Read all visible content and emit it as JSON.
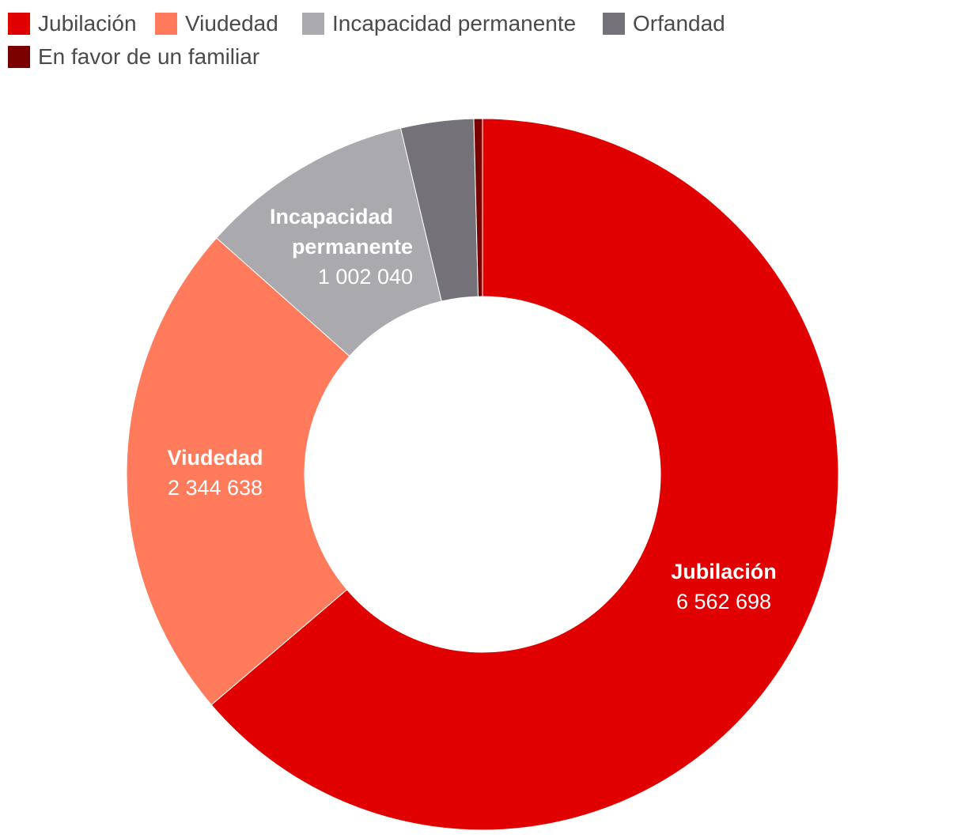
{
  "chart_data": {
    "type": "pie",
    "donut": true,
    "series": [
      {
        "name": "Jubilación",
        "value": 6562698,
        "value_label": "6 562 698",
        "color": "#e00000",
        "show_label": true
      },
      {
        "name": "Viudedad",
        "value": 2344638,
        "value_label": "2 344 638",
        "color": "#ff7b5c",
        "show_label": true
      },
      {
        "name": "Incapacidad permanente",
        "value": 1002040,
        "value_label": "1 002 040",
        "color": "#aaa9ad",
        "show_label": true
      },
      {
        "name": "Orfandad",
        "value": 340000,
        "value_label": "",
        "color": "#747278",
        "show_label": false
      },
      {
        "name": "En favor de un familiar",
        "value": 40000,
        "value_label": "",
        "color": "#7a0000",
        "show_label": false
      }
    ],
    "legend_position": "top-left"
  }
}
